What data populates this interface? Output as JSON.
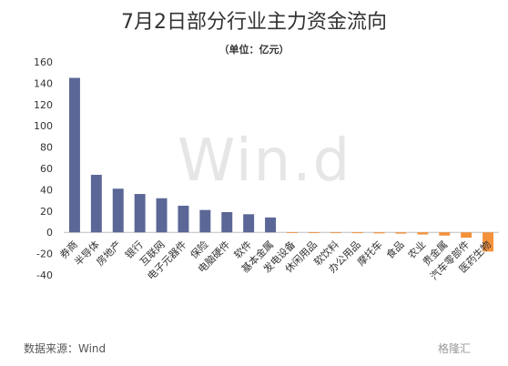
{
  "header": {
    "title": "7月2日部分行业主力资金流向",
    "subtitle": "（单位：亿元）"
  },
  "footer": {
    "source": "数据来源：Wind",
    "watermark": "Win.d",
    "logo": "格隆汇"
  },
  "colors": {
    "positive": "#5b6796",
    "negative": "#f4913b"
  },
  "chart_data": {
    "type": "bar",
    "title": "7月2日部分行业主力资金流向",
    "subtitle": "（单位：亿元）",
    "xlabel": "",
    "ylabel": "",
    "ylim": [
      -40,
      160
    ],
    "yticks": [
      -40,
      -20,
      0,
      20,
      40,
      60,
      80,
      100,
      120,
      140,
      160
    ],
    "grid": false,
    "categories": [
      "券商",
      "半导体",
      "房地产",
      "银行",
      "互联网",
      "电子元器件",
      "保险",
      "电脑硬件",
      "软件",
      "基本金属",
      "发电设备",
      "休闲用品",
      "软饮料",
      "办公用品",
      "摩托车",
      "食品",
      "农业",
      "贵金属",
      "汽车零部件",
      "医药生物"
    ],
    "values": [
      145,
      54,
      41,
      36,
      32,
      25,
      21,
      19,
      17,
      14,
      -0.5,
      -0.5,
      -0.7,
      -0.8,
      -1,
      -1.2,
      -2,
      -3,
      -5,
      -18
    ]
  }
}
